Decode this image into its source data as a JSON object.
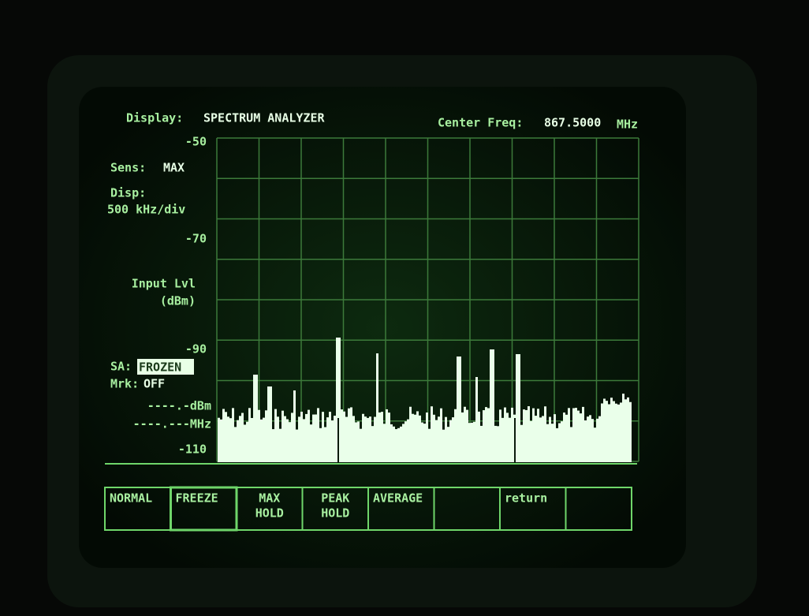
{
  "header": {
    "display_label": "Display:",
    "display_value": "SPECTRUM ANALYZER",
    "center_freq_label": "Center Freq:",
    "center_freq_value": "867.5000",
    "center_freq_unit": "MHz"
  },
  "left_panel": {
    "ref_top": "-50",
    "sens_label": "Sens:",
    "sens_value": "MAX",
    "disp_label": "Disp:",
    "disp_value": "500 kHz/div",
    "ref_2": "-70",
    "input_lvl": "Input Lvl",
    "input_unit": "(dBm)",
    "ref_3": "-90",
    "sa_label": "SA:",
    "sa_value": "FROZEN",
    "mrk_label": "Mrk:",
    "mrk_value": "OFF",
    "marker_level": "----.-dBm",
    "marker_freq": "----.---MHz",
    "ref_bottom": "-110"
  },
  "softkeys": [
    [
      "NORMAL"
    ],
    [
      "FREEZE"
    ],
    [
      "MAX",
      "HOLD"
    ],
    [
      "PEAK",
      "HOLD"
    ],
    [
      "AVERAGE"
    ],
    [],
    [
      "return"
    ],
    []
  ]
}
